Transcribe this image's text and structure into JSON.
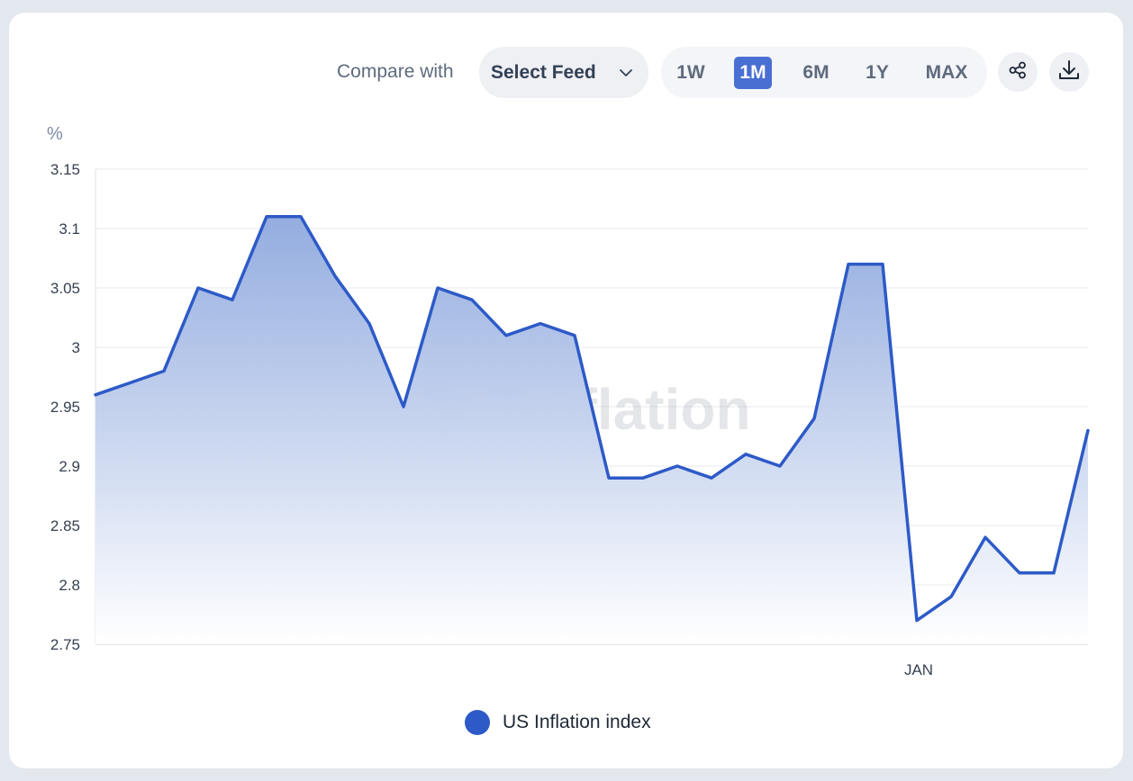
{
  "toolbar": {
    "compare_label": "Compare with",
    "select_feed_label": "Select Feed",
    "ranges": [
      "1W",
      "1M",
      "6M",
      "1Y",
      "MAX"
    ],
    "active_range": "1M",
    "share_icon": "share-icon",
    "download_icon": "download-icon"
  },
  "watermark": "Truflation",
  "colors": {
    "line": "#2d5ac7",
    "active_range": "#4a6fd3",
    "fill_top": "#8fa9de",
    "fill_bottom": "#ffffff"
  },
  "chart_data": {
    "type": "area",
    "unit_label": "%",
    "ylim": [
      2.75,
      3.15
    ],
    "y_ticks": [
      "3.15",
      "3.1",
      "3.05",
      "3",
      "2.95",
      "2.9",
      "2.85",
      "2.8",
      "2.75"
    ],
    "x_tick_labels": [
      {
        "label": "JAN",
        "index": 24
      }
    ],
    "grid": "horizontal",
    "legend_position": "bottom",
    "series": [
      {
        "name": "US Inflation index",
        "values": [
          2.96,
          2.97,
          2.98,
          3.05,
          3.04,
          3.11,
          3.11,
          3.06,
          3.02,
          2.95,
          3.05,
          3.04,
          3.01,
          3.02,
          3.01,
          2.89,
          2.89,
          2.9,
          2.89,
          2.91,
          2.9,
          2.94,
          3.07,
          3.07,
          2.77,
          2.79,
          2.84,
          2.81,
          2.81,
          2.93
        ]
      }
    ]
  }
}
